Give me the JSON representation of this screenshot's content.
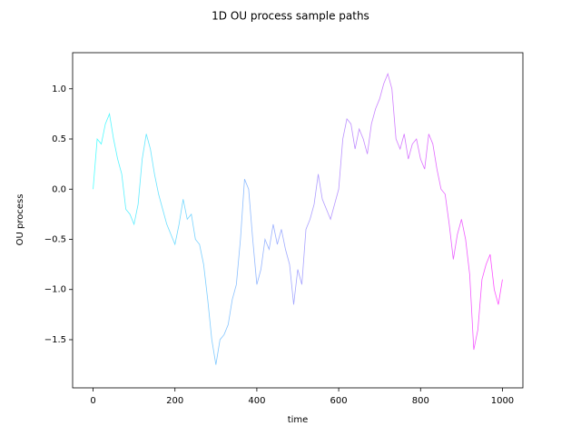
{
  "chart_data": {
    "type": "line",
    "title": "1D OU process sample paths",
    "x_label": "time",
    "y_label": "OU process",
    "x": [
      0,
      10,
      20,
      30,
      40,
      50,
      60,
      70,
      80,
      90,
      100,
      110,
      120,
      130,
      140,
      150,
      160,
      170,
      180,
      190,
      200,
      210,
      220,
      230,
      240,
      250,
      260,
      270,
      280,
      290,
      300,
      310,
      320,
      330,
      340,
      350,
      360,
      370,
      380,
      390,
      400,
      410,
      420,
      430,
      440,
      450,
      460,
      470,
      480,
      490,
      500,
      510,
      520,
      530,
      540,
      550,
      560,
      570,
      580,
      590,
      600,
      610,
      620,
      630,
      640,
      650,
      660,
      670,
      680,
      690,
      700,
      710,
      720,
      730,
      740,
      750,
      760,
      770,
      780,
      790,
      800,
      810,
      820,
      830,
      840,
      850,
      860,
      870,
      880,
      890,
      900,
      910,
      920,
      930,
      940,
      950,
      960,
      970,
      980,
      990,
      1000
    ],
    "values": [
      0.0,
      0.5,
      0.45,
      0.65,
      0.75,
      0.5,
      0.3,
      0.15,
      -0.2,
      -0.25,
      -0.35,
      -0.15,
      0.3,
      0.55,
      0.4,
      0.15,
      -0.05,
      -0.2,
      -0.35,
      -0.45,
      -0.55,
      -0.35,
      -0.1,
      -0.3,
      -0.25,
      -0.5,
      -0.55,
      -0.75,
      -1.1,
      -1.5,
      -1.75,
      -1.5,
      -1.45,
      -1.35,
      -1.1,
      -0.95,
      -0.5,
      0.1,
      0.0,
      -0.5,
      -0.95,
      -0.8,
      -0.5,
      -0.6,
      -0.35,
      -0.55,
      -0.4,
      -0.6,
      -0.75,
      -1.15,
      -0.8,
      -0.95,
      -0.4,
      -0.3,
      -0.15,
      0.15,
      -0.1,
      -0.2,
      -0.3,
      -0.15,
      0.0,
      0.5,
      0.7,
      0.65,
      0.4,
      0.6,
      0.5,
      0.35,
      0.65,
      0.8,
      0.9,
      1.05,
      1.15,
      1.0,
      0.5,
      0.4,
      0.55,
      0.3,
      0.45,
      0.5,
      0.3,
      0.2,
      0.55,
      0.45,
      0.2,
      0.0,
      -0.05,
      -0.35,
      -0.7,
      -0.45,
      -0.3,
      -0.5,
      -0.85,
      -1.6,
      -1.4,
      -0.9,
      -0.75,
      -0.65,
      -1.0,
      -1.15,
      -0.9
    ],
    "colormap": [
      "#00ffff",
      "#ff00ff"
    ],
    "xlim": [
      -50,
      1050
    ],
    "ylim": [
      -1.98,
      1.36
    ],
    "xticks": [
      0,
      200,
      400,
      600,
      800,
      1000
    ],
    "yticks": [
      {
        "value": -1.5,
        "label": "−1.5"
      },
      {
        "value": -1.0,
        "label": "−1.0"
      },
      {
        "value": -0.5,
        "label": "−0.5"
      },
      {
        "value": 0.0,
        "label": "0.0"
      },
      {
        "value": 0.5,
        "label": "0.5"
      },
      {
        "value": 1.0,
        "label": "1.0"
      }
    ]
  }
}
